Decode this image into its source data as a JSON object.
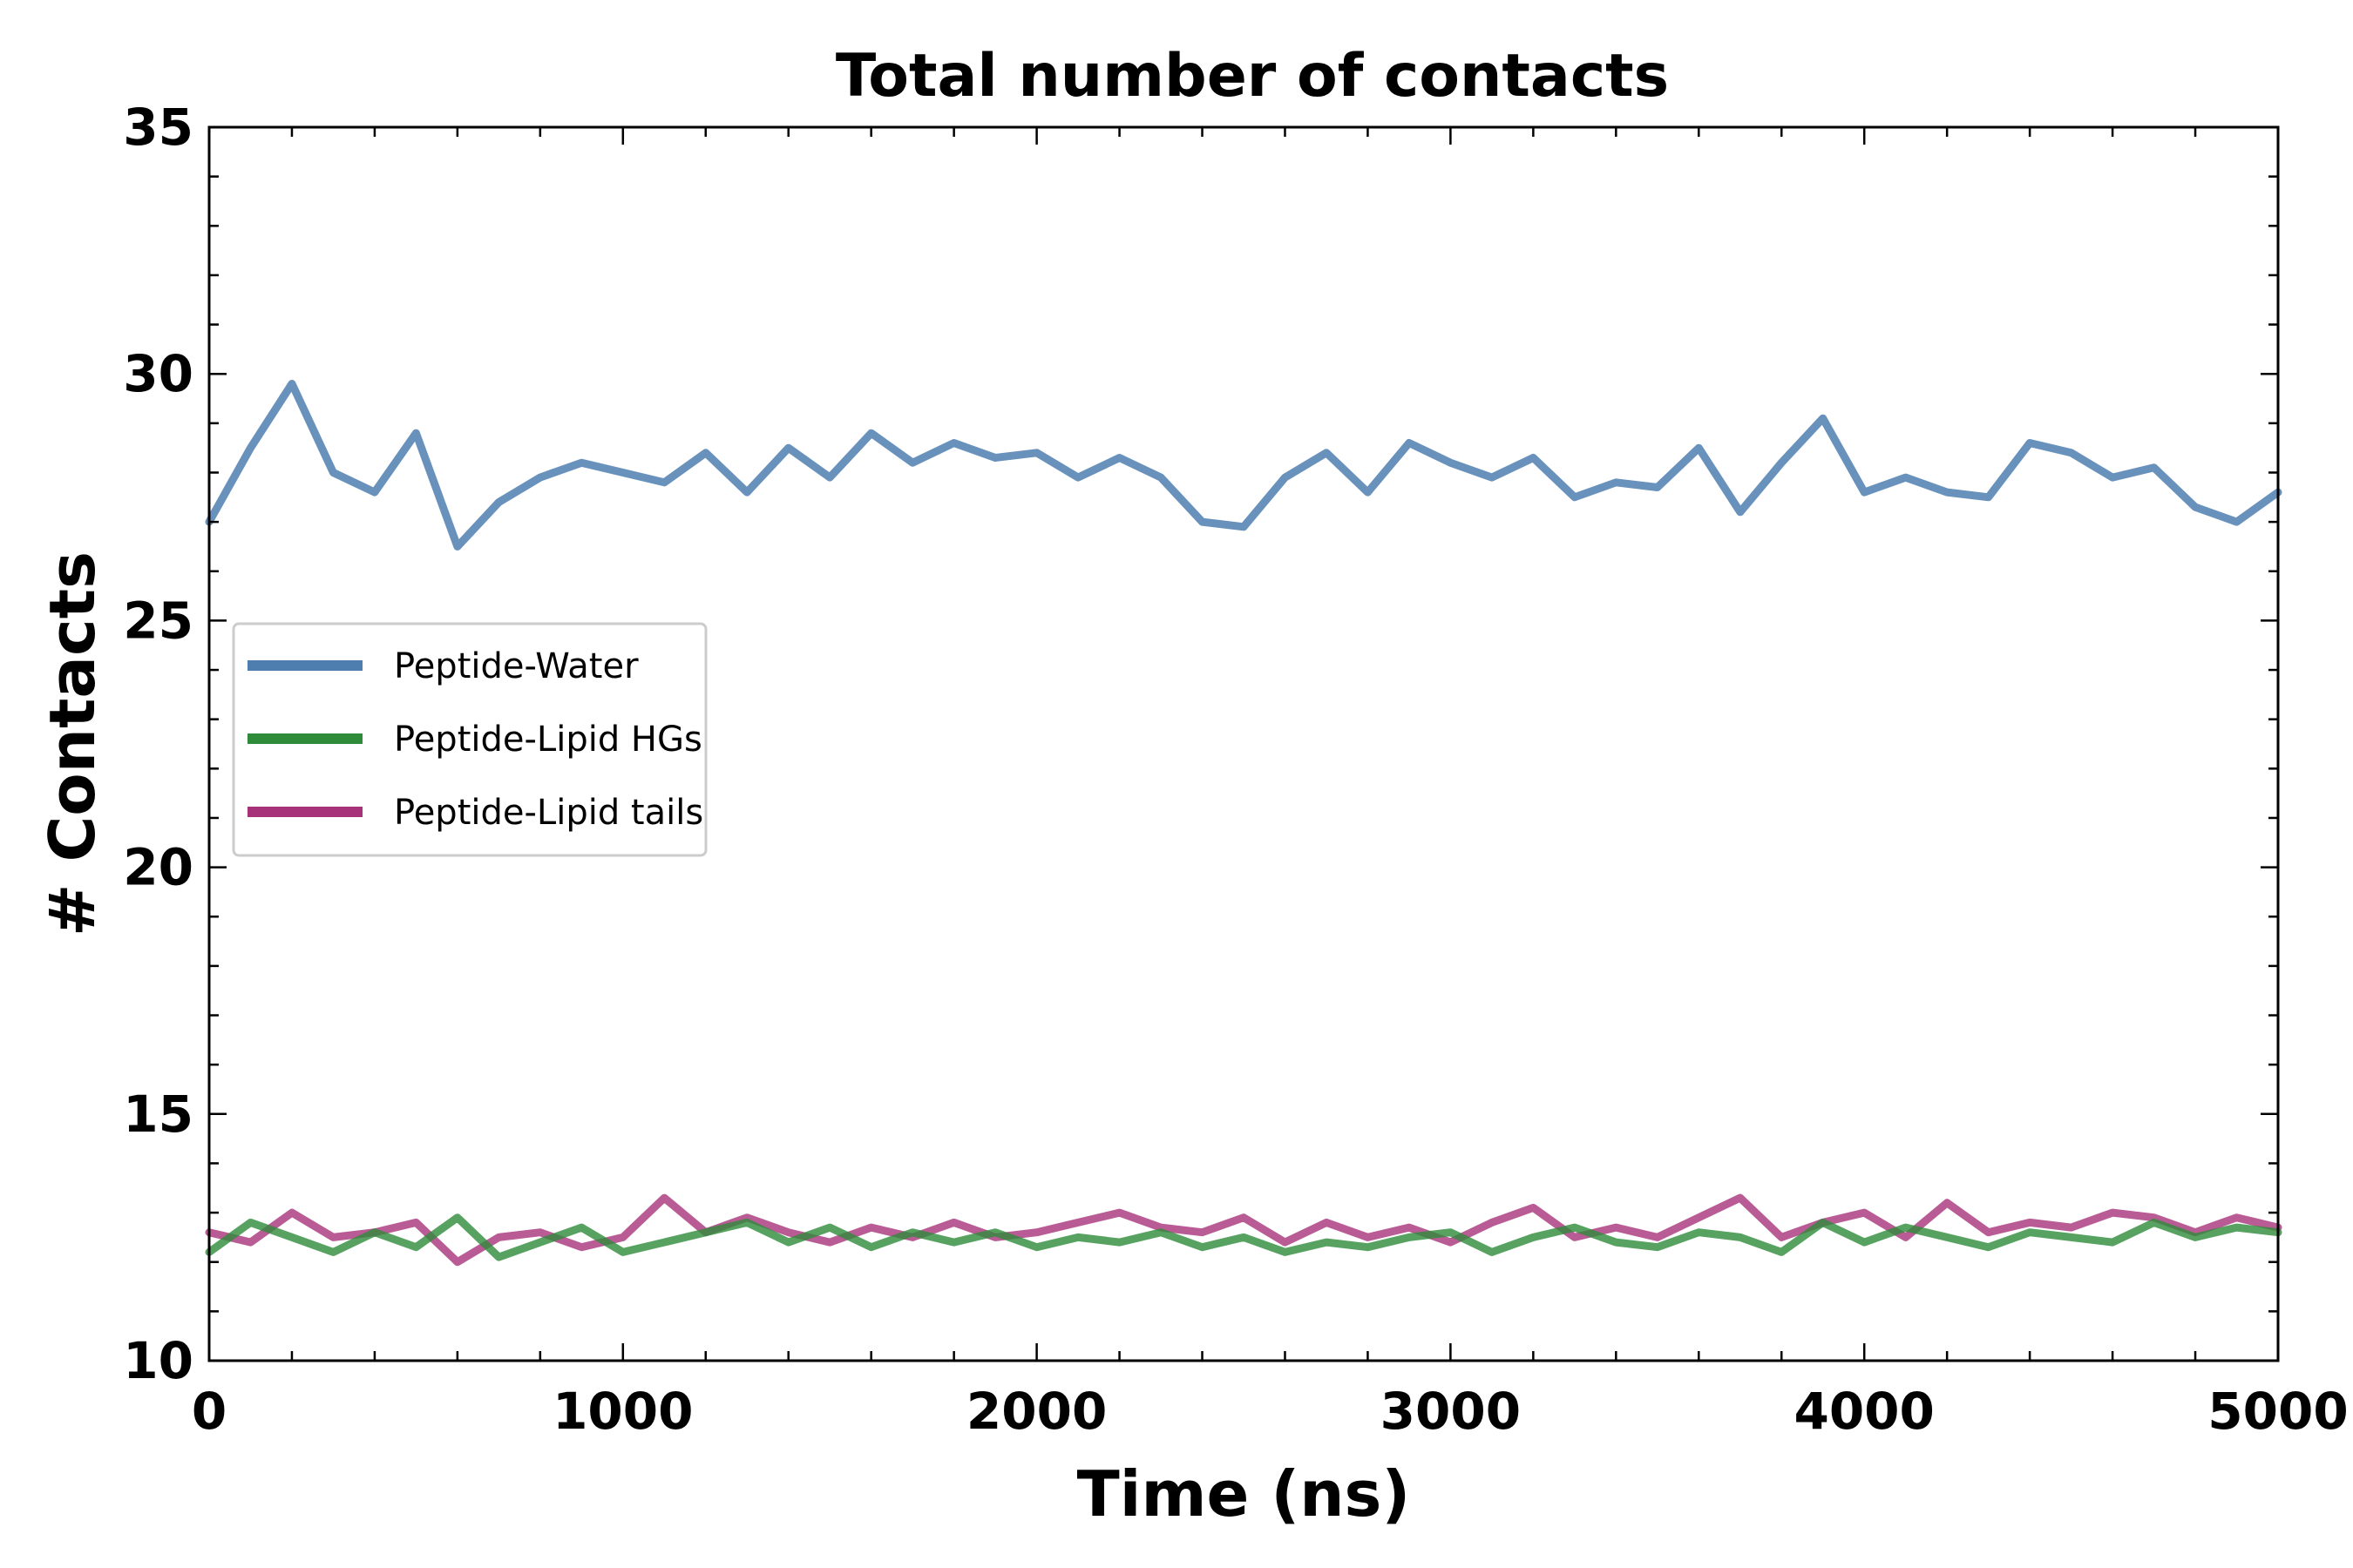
{
  "chart_data": {
    "type": "line",
    "title": "Total number of contacts",
    "xlabel": "Time (ns)",
    "ylabel": "# Contacts",
    "xlim": [
      0,
      5000
    ],
    "ylim": [
      10,
      35
    ],
    "x_ticks": [
      0,
      1000,
      2000,
      3000,
      4000,
      5000
    ],
    "x_tick_labels": [
      "0",
      "1000",
      "2000",
      "3000",
      "4000",
      "5000"
    ],
    "y_ticks": [
      10,
      15,
      20,
      25,
      30,
      35
    ],
    "y_tick_labels": [
      "10",
      "15",
      "20",
      "25",
      "30",
      "35"
    ],
    "grid": false,
    "legend_position": "center-left",
    "x": [
      0,
      100,
      200,
      300,
      400,
      500,
      600,
      700,
      800,
      900,
      1000,
      1100,
      1200,
      1300,
      1400,
      1500,
      1600,
      1700,
      1800,
      1900,
      2000,
      2100,
      2200,
      2300,
      2400,
      2500,
      2600,
      2700,
      2800,
      2900,
      3000,
      3100,
      3200,
      3300,
      3400,
      3500,
      3600,
      3700,
      3800,
      3900,
      4000,
      4100,
      4200,
      4300,
      4400,
      4500,
      4600,
      4700,
      4800,
      4900,
      5000
    ],
    "series": [
      {
        "name": "Peptide-Water",
        "color": "#4e7eb0",
        "values": [
          27.0,
          28.5,
          29.8,
          28.0,
          27.6,
          28.8,
          26.5,
          27.4,
          27.9,
          28.2,
          28.0,
          27.8,
          28.4,
          27.6,
          28.5,
          27.9,
          28.8,
          28.2,
          28.6,
          28.3,
          28.4,
          27.9,
          28.3,
          27.9,
          27.0,
          26.9,
          27.9,
          28.4,
          27.6,
          28.6,
          28.2,
          27.9,
          28.3,
          27.5,
          27.8,
          27.7,
          28.5,
          27.2,
          28.2,
          29.1,
          27.6,
          27.9,
          27.6,
          27.5,
          28.6,
          28.4,
          27.9,
          28.1,
          27.3,
          27.0,
          27.6
        ]
      },
      {
        "name": "Peptide-Lipid HGs",
        "color": "#2e8b3a",
        "values": [
          12.2,
          12.8,
          12.5,
          12.2,
          12.6,
          12.3,
          12.9,
          12.1,
          12.4,
          12.7,
          12.2,
          12.4,
          12.6,
          12.8,
          12.4,
          12.7,
          12.3,
          12.6,
          12.4,
          12.6,
          12.3,
          12.5,
          12.4,
          12.6,
          12.3,
          12.5,
          12.2,
          12.4,
          12.3,
          12.5,
          12.6,
          12.2,
          12.5,
          12.7,
          12.4,
          12.3,
          12.6,
          12.5,
          12.2,
          12.8,
          12.4,
          12.7,
          12.5,
          12.3,
          12.6,
          12.5,
          12.4,
          12.8,
          12.5,
          12.7,
          12.6
        ]
      },
      {
        "name": "Peptide-Lipid tails",
        "color": "#a83279",
        "values": [
          12.6,
          12.4,
          13.0,
          12.5,
          12.6,
          12.8,
          12.0,
          12.5,
          12.6,
          12.3,
          12.5,
          13.3,
          12.6,
          12.9,
          12.6,
          12.4,
          12.7,
          12.5,
          12.8,
          12.5,
          12.6,
          12.8,
          13.0,
          12.7,
          12.6,
          12.9,
          12.4,
          12.8,
          12.5,
          12.7,
          12.4,
          12.8,
          13.1,
          12.5,
          12.7,
          12.5,
          12.9,
          13.3,
          12.5,
          12.8,
          13.0,
          12.5,
          13.2,
          12.6,
          12.8,
          12.7,
          13.0,
          12.9,
          12.6,
          12.9,
          12.7
        ]
      }
    ]
  }
}
